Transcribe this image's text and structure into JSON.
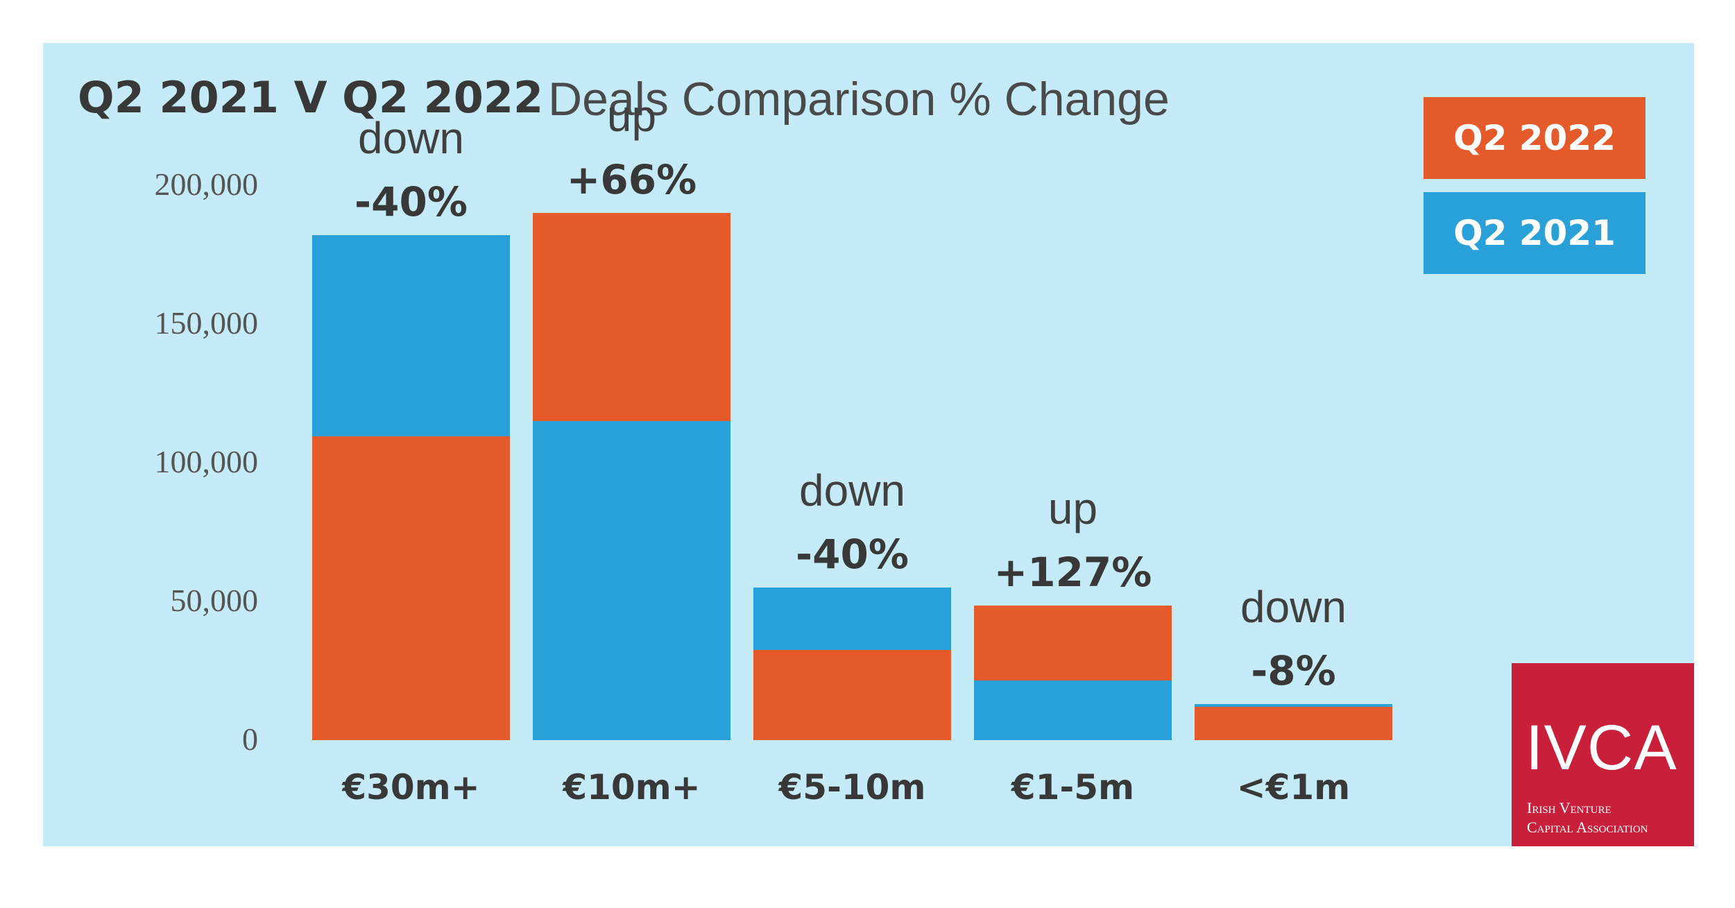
{
  "title": {
    "bold": "Q2 2021 V Q2 2022",
    "light": "Deals Comparison % Change"
  },
  "colors": {
    "background": "#c5ebf8",
    "q2_2022": "#e55a2b",
    "q2_2021": "#29a1d8",
    "text": "#383838",
    "logo": "#c8203a"
  },
  "legend": [
    {
      "label": "Q2 2022",
      "color": "#e55a2b"
    },
    {
      "label": "Q2 2021",
      "color": "#29a1d8"
    }
  ],
  "logo": {
    "main": "IVCA",
    "sub1": "Irish Venture",
    "sub2": "Capital Association"
  },
  "chart_data": {
    "type": "bar",
    "categories": [
      "€30m+",
      "€10m+",
      "€5-10m",
      "€1-5m",
      "<€1m"
    ],
    "series": [
      {
        "name": "Q2 2021",
        "values": [
          182000,
          115000,
          55000,
          21500,
          13000
        ]
      },
      {
        "name": "Q2 2022",
        "values": [
          109500,
          190000,
          32500,
          48500,
          12000
        ]
      }
    ],
    "change_word": [
      "down",
      "up",
      "down",
      "up",
      "down"
    ],
    "change_pct": [
      "-40%",
      "+66%",
      "-40%",
      "+127%",
      "-8%"
    ],
    "yticks": [
      "200,000",
      "150,000",
      "100,000",
      "50,000",
      "0"
    ],
    "ytick_values": [
      200000,
      150000,
      100000,
      50000,
      0
    ],
    "ylim": [
      0,
      200000
    ],
    "legend_position": "top-right",
    "grid": false
  }
}
